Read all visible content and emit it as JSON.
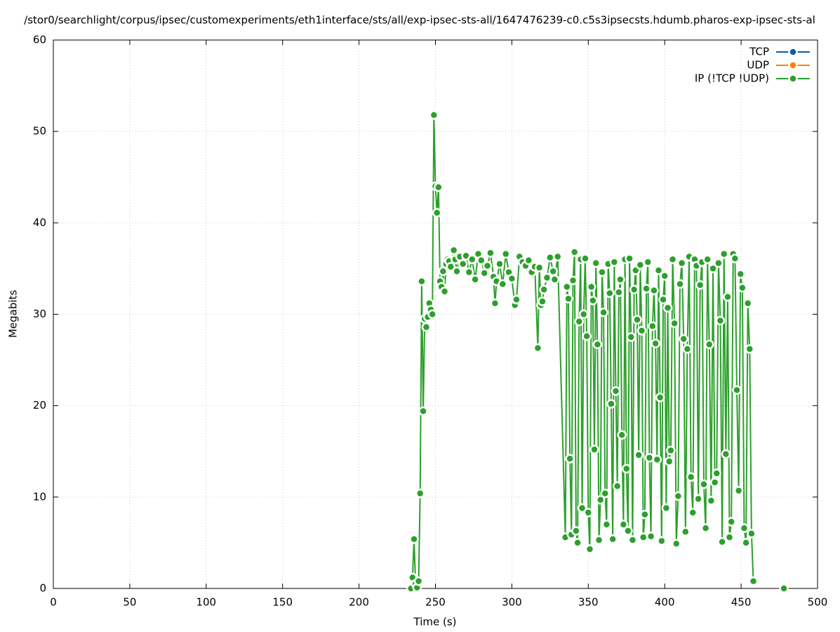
{
  "chart_data": {
    "type": "line",
    "title": "/stor0/searchlight/corpus/ipsec/customexperiments/eth1interface/sts/all/exp-ipsec-sts-all/1647476239-c0.c5s3ipsecsts.hdumb.pharos-exp-ipsec-sts-al",
    "x_label": "Time (s)",
    "y_label": "Megabits",
    "xlim": [
      0,
      500
    ],
    "xticks": [
      0,
      50,
      100,
      150,
      200,
      250,
      300,
      350,
      400,
      450,
      500
    ],
    "ylim": [
      0,
      60
    ],
    "yticks": [
      0,
      10,
      20,
      30,
      40,
      50,
      60
    ],
    "grid": true,
    "legend": "top-right",
    "series": [
      {
        "name": "TCP",
        "color": "#0060ad",
        "x": [],
        "values": []
      },
      {
        "name": "UDP",
        "color": "#ff7f0e",
        "x": [],
        "values": []
      },
      {
        "name": "IP (!TCP  !UDP)",
        "color": "#2ca02c",
        "x": [
          234,
          235,
          236,
          237,
          238,
          239,
          240,
          241,
          242,
          243,
          244,
          245,
          246,
          247,
          248,
          249,
          250,
          251,
          252,
          253,
          254,
          255,
          256,
          257,
          258,
          259,
          260,
          262,
          263,
          264,
          266,
          268,
          270,
          272,
          274,
          276,
          278,
          280,
          282,
          284,
          286,
          288,
          289,
          290,
          292,
          294,
          296,
          298,
          300,
          302,
          303,
          305,
          307,
          309,
          311,
          313,
          315,
          317,
          318,
          319,
          320,
          321,
          323,
          325,
          327,
          328,
          330,
          335,
          336,
          337,
          338,
          339,
          340,
          341,
          342,
          343,
          344,
          345,
          346,
          347,
          348,
          349,
          350,
          351,
          352,
          353,
          354,
          355,
          356,
          357,
          358,
          359,
          360,
          361,
          362,
          363,
          364,
          365,
          366,
          367,
          368,
          369,
          370,
          371,
          372,
          373,
          374,
          375,
          376,
          377,
          378,
          379,
          380,
          381,
          382,
          383,
          384,
          385,
          386,
          387,
          388,
          389,
          390,
          391,
          392,
          393,
          394,
          395,
          396,
          397,
          398,
          399,
          400,
          401,
          402,
          403,
          404,
          405.2,
          406.4,
          407.6,
          408.8,
          410,
          411.2,
          412.4,
          413.6,
          414.8,
          416,
          417.2,
          418.4,
          419.6,
          420.8,
          422,
          423.2,
          424.4,
          425.6,
          426.8,
          428,
          429.2,
          430.4,
          431.6,
          432.8,
          434,
          435.2,
          436.4,
          437.6,
          438.8,
          440,
          441.2,
          442.4,
          443.6,
          444.8,
          446,
          447.2,
          448.4,
          449.6,
          450.8,
          452,
          453.2,
          454.4,
          455.6,
          456.8,
          458,
          468,
          478
        ],
        "values": [
          0,
          1.2,
          5.4,
          0.5,
          0.1,
          0.8,
          10.4,
          33.6,
          19.4,
          29.5,
          28.6,
          29.7,
          31.2,
          30.5,
          30,
          51.8,
          44,
          41.1,
          43.9,
          33.6,
          33,
          34.7,
          32.5,
          35.5,
          36,
          35.8,
          35.2,
          37,
          36,
          34.7,
          36.3,
          35.5,
          36.4,
          34.6,
          36,
          33.8,
          36.6,
          35.9,
          34.5,
          35.3,
          36.7,
          34.1,
          31.2,
          33.6,
          35.5,
          33.3,
          36.6,
          34.6,
          33.9,
          31,
          31.6,
          36.3,
          35.7,
          35.3,
          35.9,
          34.6,
          35.2,
          26.3,
          35.1,
          31,
          31.4,
          32.7,
          34,
          36.2,
          34.7,
          33.8,
          36.3,
          5.6,
          33,
          31.7,
          14.2,
          5.9,
          33.7,
          36.8,
          6.3,
          5,
          29.2,
          36,
          8.8,
          30,
          36.1,
          27.6,
          8.3,
          4.3,
          33,
          31.5,
          15.2,
          35.6,
          26.7,
          5.3,
          9.7,
          34.6,
          30.2,
          10.4,
          7,
          35.5,
          32.3,
          20.2,
          5.4,
          35.7,
          21.6,
          11.2,
          32.4,
          33.8,
          16.8,
          7,
          36,
          13.1,
          6.3,
          36.1,
          27.5,
          5.3,
          32.7,
          34.8,
          29.4,
          14.6,
          35.4,
          28.2,
          5.6,
          8.1,
          32.8,
          35.7,
          14.3,
          5.7,
          28.7,
          32.6,
          26.8,
          14.1,
          34.8,
          20.9,
          5.2,
          31.6,
          34.2,
          8.8,
          30.7,
          13.9,
          15.1,
          36,
          29,
          4.9,
          10.1,
          33.3,
          35.6,
          27.3,
          6.2,
          26.2,
          36.3,
          12.2,
          8.3,
          36,
          35.3,
          9.8,
          33.2,
          35.7,
          11.4,
          6.6,
          36,
          26.7,
          9.6,
          35,
          11.6,
          12.6,
          35.6,
          29.3,
          5.1,
          36.6,
          14.7,
          31.9,
          5.6,
          7.3,
          36.6,
          36.1,
          21.7,
          10.7,
          34.4,
          32.9,
          6.6,
          5,
          31.2,
          26.2,
          6,
          0.8,
          null,
          0
        ]
      }
    ]
  }
}
